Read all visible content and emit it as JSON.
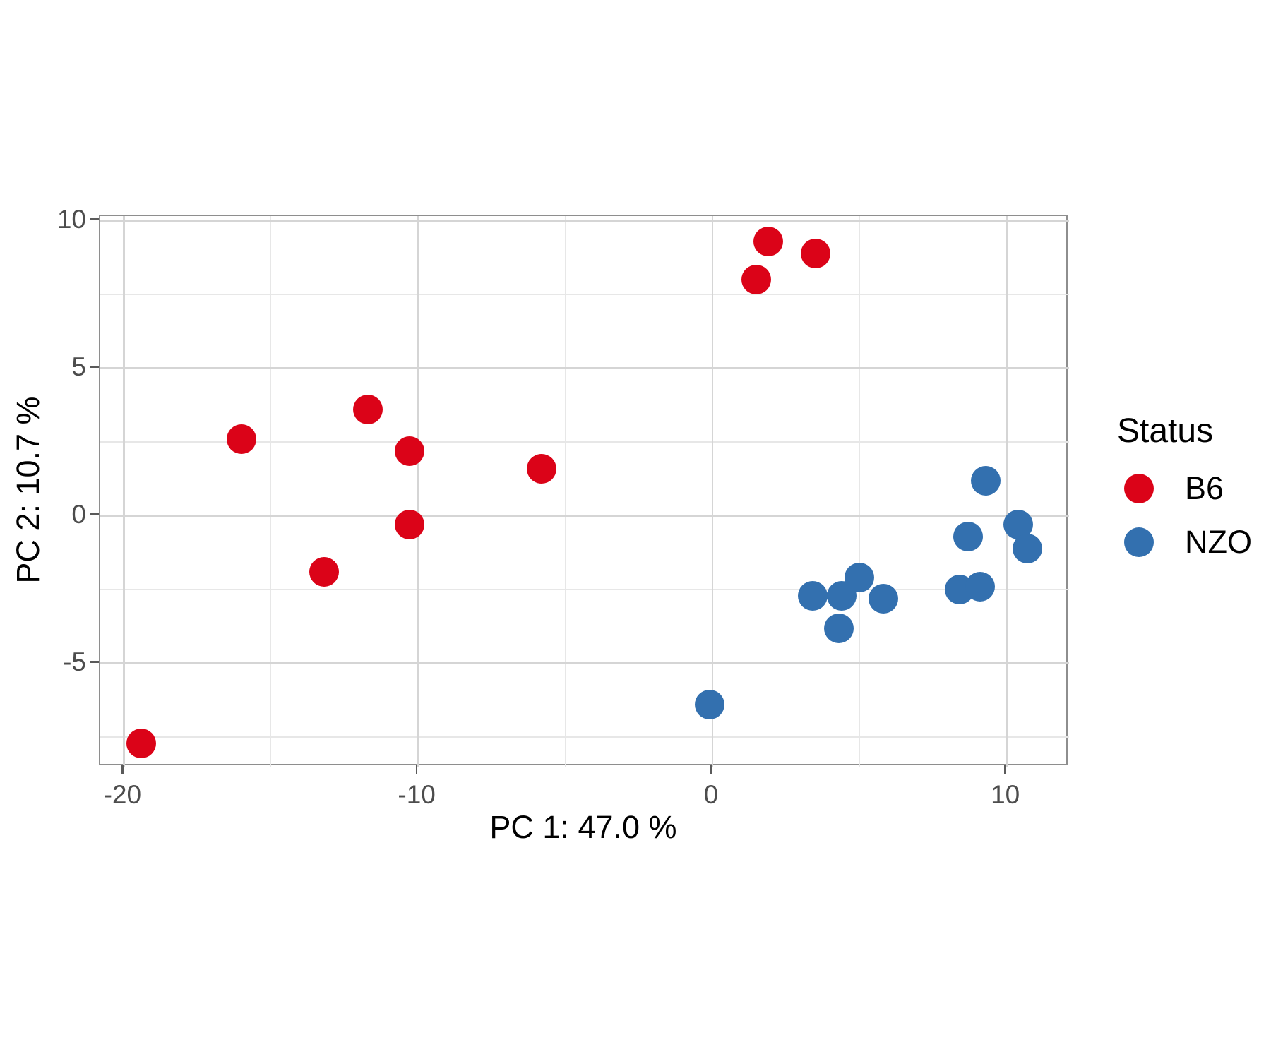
{
  "figure": {
    "background": "#ffffff"
  },
  "chart_data": {
    "type": "scatter",
    "title": "",
    "xlabel": "PC 1: 47.0 %",
    "ylabel": "PC 2: 10.7 %",
    "legend_title": "Status",
    "legend_position": "right",
    "grid": "major+minor",
    "xlim": [
      -20.8,
      12.12
    ],
    "ylim": [
      -8.5,
      10.16
    ],
    "x_major_ticks": [
      -20,
      -10,
      0,
      10
    ],
    "x_tick_labels": [
      "-20",
      "-10",
      "0",
      "10"
    ],
    "x_minor_ticks": [
      -15,
      -5,
      5
    ],
    "y_major_ticks": [
      10,
      5,
      0,
      -5
    ],
    "y_tick_labels": [
      "10",
      "5",
      "0",
      "-5"
    ],
    "y_minor_ticks": [
      7.5,
      2.5,
      -2.5,
      -7.5
    ],
    "series": [
      {
        "name": "B6",
        "color": "#DB0318",
        "points": [
          [
            -19.4,
            -7.7
          ],
          [
            -16.0,
            2.6
          ],
          [
            -13.2,
            -1.9
          ],
          [
            -11.7,
            3.6
          ],
          [
            -10.3,
            2.2
          ],
          [
            -10.3,
            -0.3
          ],
          [
            -5.8,
            1.6
          ],
          [
            1.5,
            8.0
          ],
          [
            1.9,
            9.3
          ],
          [
            3.5,
            8.9
          ]
        ]
      },
      {
        "name": "NZO",
        "color": "#3370AF",
        "points": [
          [
            -0.1,
            -6.4
          ],
          [
            3.4,
            -2.7
          ],
          [
            4.3,
            -3.8
          ],
          [
            4.4,
            -2.7
          ],
          [
            5.0,
            -2.1
          ],
          [
            5.8,
            -2.8
          ],
          [
            8.4,
            -2.5
          ],
          [
            9.1,
            -2.4
          ],
          [
            8.7,
            -0.7
          ],
          [
            9.3,
            1.2
          ],
          [
            10.4,
            -0.3
          ],
          [
            10.7,
            -1.1
          ]
        ]
      }
    ]
  }
}
